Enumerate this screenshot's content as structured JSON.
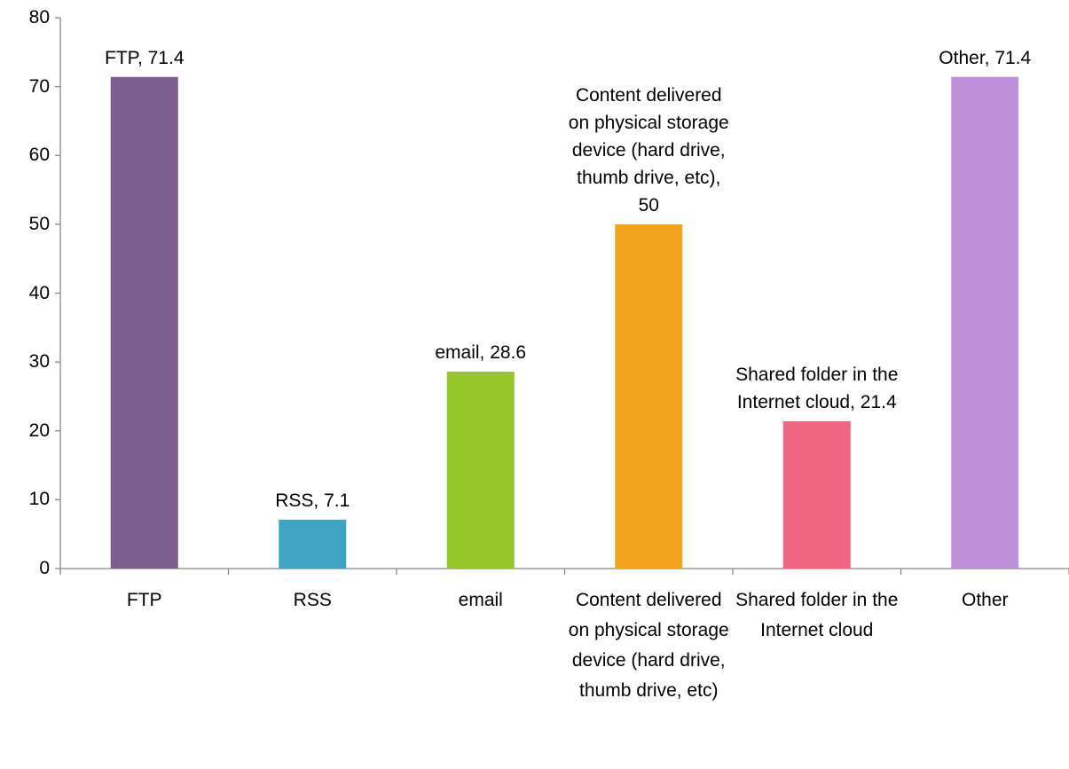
{
  "chart_data": {
    "type": "bar",
    "categories": [
      "FTP",
      "RSS",
      "email",
      "Content delivered on physical storage device (hard drive, thumb drive, etc)",
      "Shared folder in the Internet cloud",
      "Other"
    ],
    "values": [
      71.4,
      7.1,
      28.6,
      50,
      21.4,
      71.4
    ],
    "value_labels": [
      "FTP, 71.4",
      "RSS, 7.1",
      "email, 28.6",
      "Content delivered on physical storage device (hard drive, thumb drive, etc), 50",
      "Shared folder in the Internet cloud, 21.4",
      "Other, 71.4"
    ],
    "colors": [
      "#7b5e8e",
      "#3fa3c4",
      "#96c72a",
      "#f4a41c",
      "#f06584",
      "#be8fd9"
    ],
    "ylim": [
      0,
      80
    ],
    "yticks": [
      0,
      10,
      20,
      30,
      40,
      50,
      60,
      70,
      80
    ],
    "grid": false
  }
}
